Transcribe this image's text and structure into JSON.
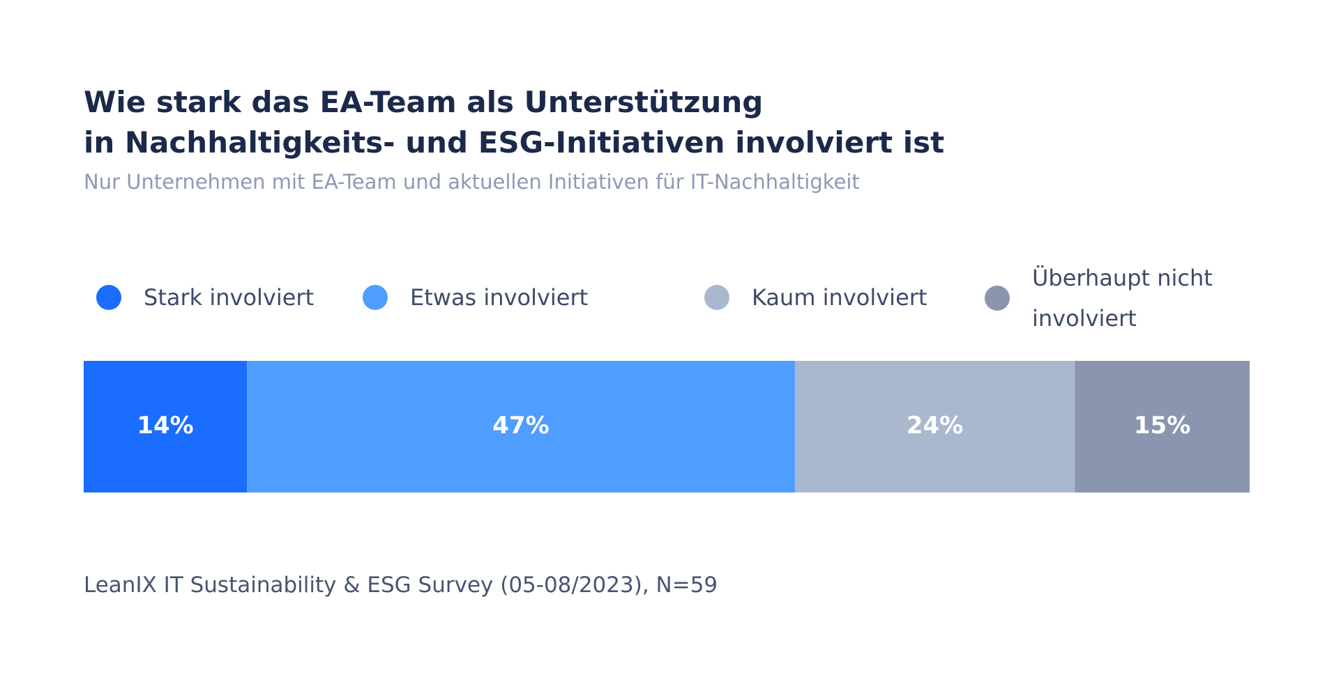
{
  "chart_data": {
    "type": "stacked-bar",
    "title": [
      "Wie stark das EA-Team als Unterstützung",
      "in Nachhaltigkeits- und ESG-Initiativen involviert ist"
    ],
    "subtitle": "Nur Unternehmen mit EA-Team und aktuellen Initiativen für IT-Nachhaltigkeit",
    "source": "LeanIX IT Sustainability & ESG Survey (05-08/2023), N=59",
    "xlim": [
      0,
      100
    ],
    "series": [
      {
        "name": "Stark involviert",
        "color": "#1a6dff",
        "values": [
          14
        ],
        "value_labels": [
          "14%"
        ]
      },
      {
        "name": "Etwas involviert",
        "color": "#4f9dff",
        "values": [
          47
        ],
        "value_labels": [
          "47%"
        ]
      },
      {
        "name": "Kaum involviert",
        "color": "#a9b7cf",
        "values": [
          24
        ],
        "value_labels": [
          "24%"
        ]
      },
      {
        "name": "Überhaupt nicht involviert",
        "color": "#8a96b0",
        "values": [
          15
        ],
        "value_labels": [
          "15%"
        ]
      }
    ]
  }
}
